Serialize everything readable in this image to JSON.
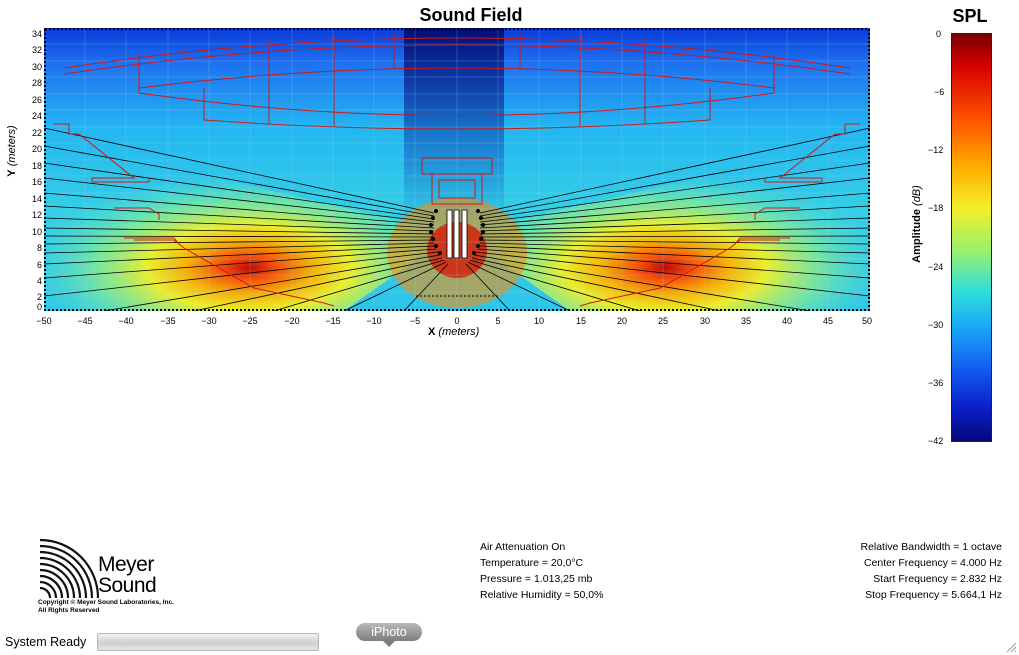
{
  "plot": {
    "title": "Sound Field",
    "x_label_axis": "X",
    "x_label_unit": "(meters)",
    "y_label_axis": "Y",
    "y_label_unit": "(meters)",
    "x_ticks": [
      "−50",
      "−45",
      "−40",
      "−35",
      "−30",
      "−25",
      "−20",
      "−15",
      "−10",
      "−5",
      "0",
      "5",
      "10",
      "15",
      "20",
      "25",
      "30",
      "35",
      "40",
      "45",
      "50"
    ],
    "y_ticks": [
      "34",
      "32",
      "30",
      "28",
      "26",
      "24",
      "22",
      "20",
      "18",
      "16",
      "14",
      "12",
      "10",
      "8",
      "6",
      "4",
      "2",
      "0"
    ]
  },
  "colorbar": {
    "title": "SPL",
    "label_main": "Amplitude",
    "label_unit": "(dB)",
    "ticks": [
      "0",
      "−6",
      "−12",
      "−18",
      "−24",
      "−30",
      "−36",
      "−42"
    ]
  },
  "logo": {
    "line1": "Meyer",
    "line2": "Sound",
    "copyright1": "Copyright © Meyer Sound Laboratories, Inc.",
    "copyright2": "All Rights Reserved"
  },
  "conditions": [
    "Air Attenuation On",
    "Temperature = 20,0°C",
    "Pressure = 1.013,25  mb",
    "Relative Humidity = 50,0%"
  ],
  "analysis": [
    "Relative Bandwidth = 1 octave",
    "Center Frequency = 4.000 Hz",
    "Start Frequency = 2.832 Hz",
    "Stop Frequency = 5.664,1 Hz"
  ],
  "status": {
    "text": "System Ready"
  },
  "dock": {
    "tooltip": "iPhoto"
  }
}
